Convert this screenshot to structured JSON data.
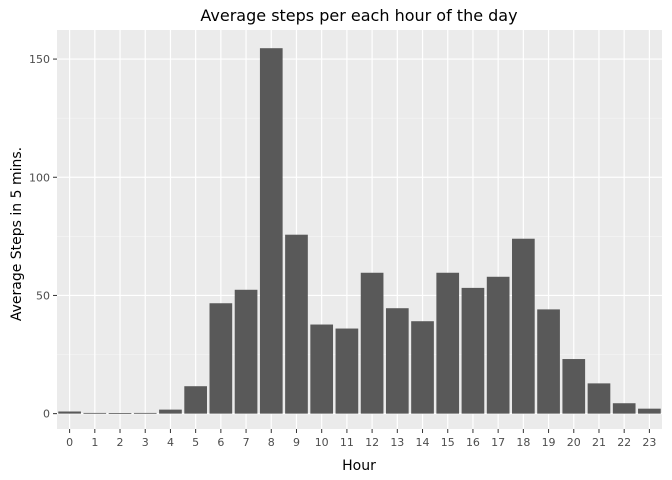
{
  "chart_data": {
    "type": "bar",
    "title": "Average steps per each hour of the day",
    "xlabel": "Hour",
    "ylabel": "Average Steps in 5 mins.",
    "categories": [
      "0",
      "1",
      "2",
      "3",
      "4",
      "5",
      "6",
      "7",
      "8",
      "9",
      "10",
      "11",
      "12",
      "13",
      "14",
      "15",
      "16",
      "17",
      "18",
      "19",
      "20",
      "21",
      "22",
      "23"
    ],
    "values": [
      0.9,
      0.3,
      0.2,
      0.3,
      1.7,
      11.6,
      46.7,
      52.4,
      154.6,
      75.7,
      37.7,
      36.0,
      59.6,
      44.6,
      39.1,
      59.6,
      53.2,
      57.9,
      74.0,
      44.1,
      23.1,
      12.8,
      4.4,
      2.1
    ],
    "ylim": [
      -6.5,
      162.3
    ],
    "yticks": [
      0,
      50,
      100,
      150
    ],
    "colors": {
      "bar": "#595959",
      "panel": "#ebebeb",
      "grid_major": "#ffffff",
      "grid_minor": "#f5f5f5"
    },
    "grid": true,
    "legend": "none"
  }
}
